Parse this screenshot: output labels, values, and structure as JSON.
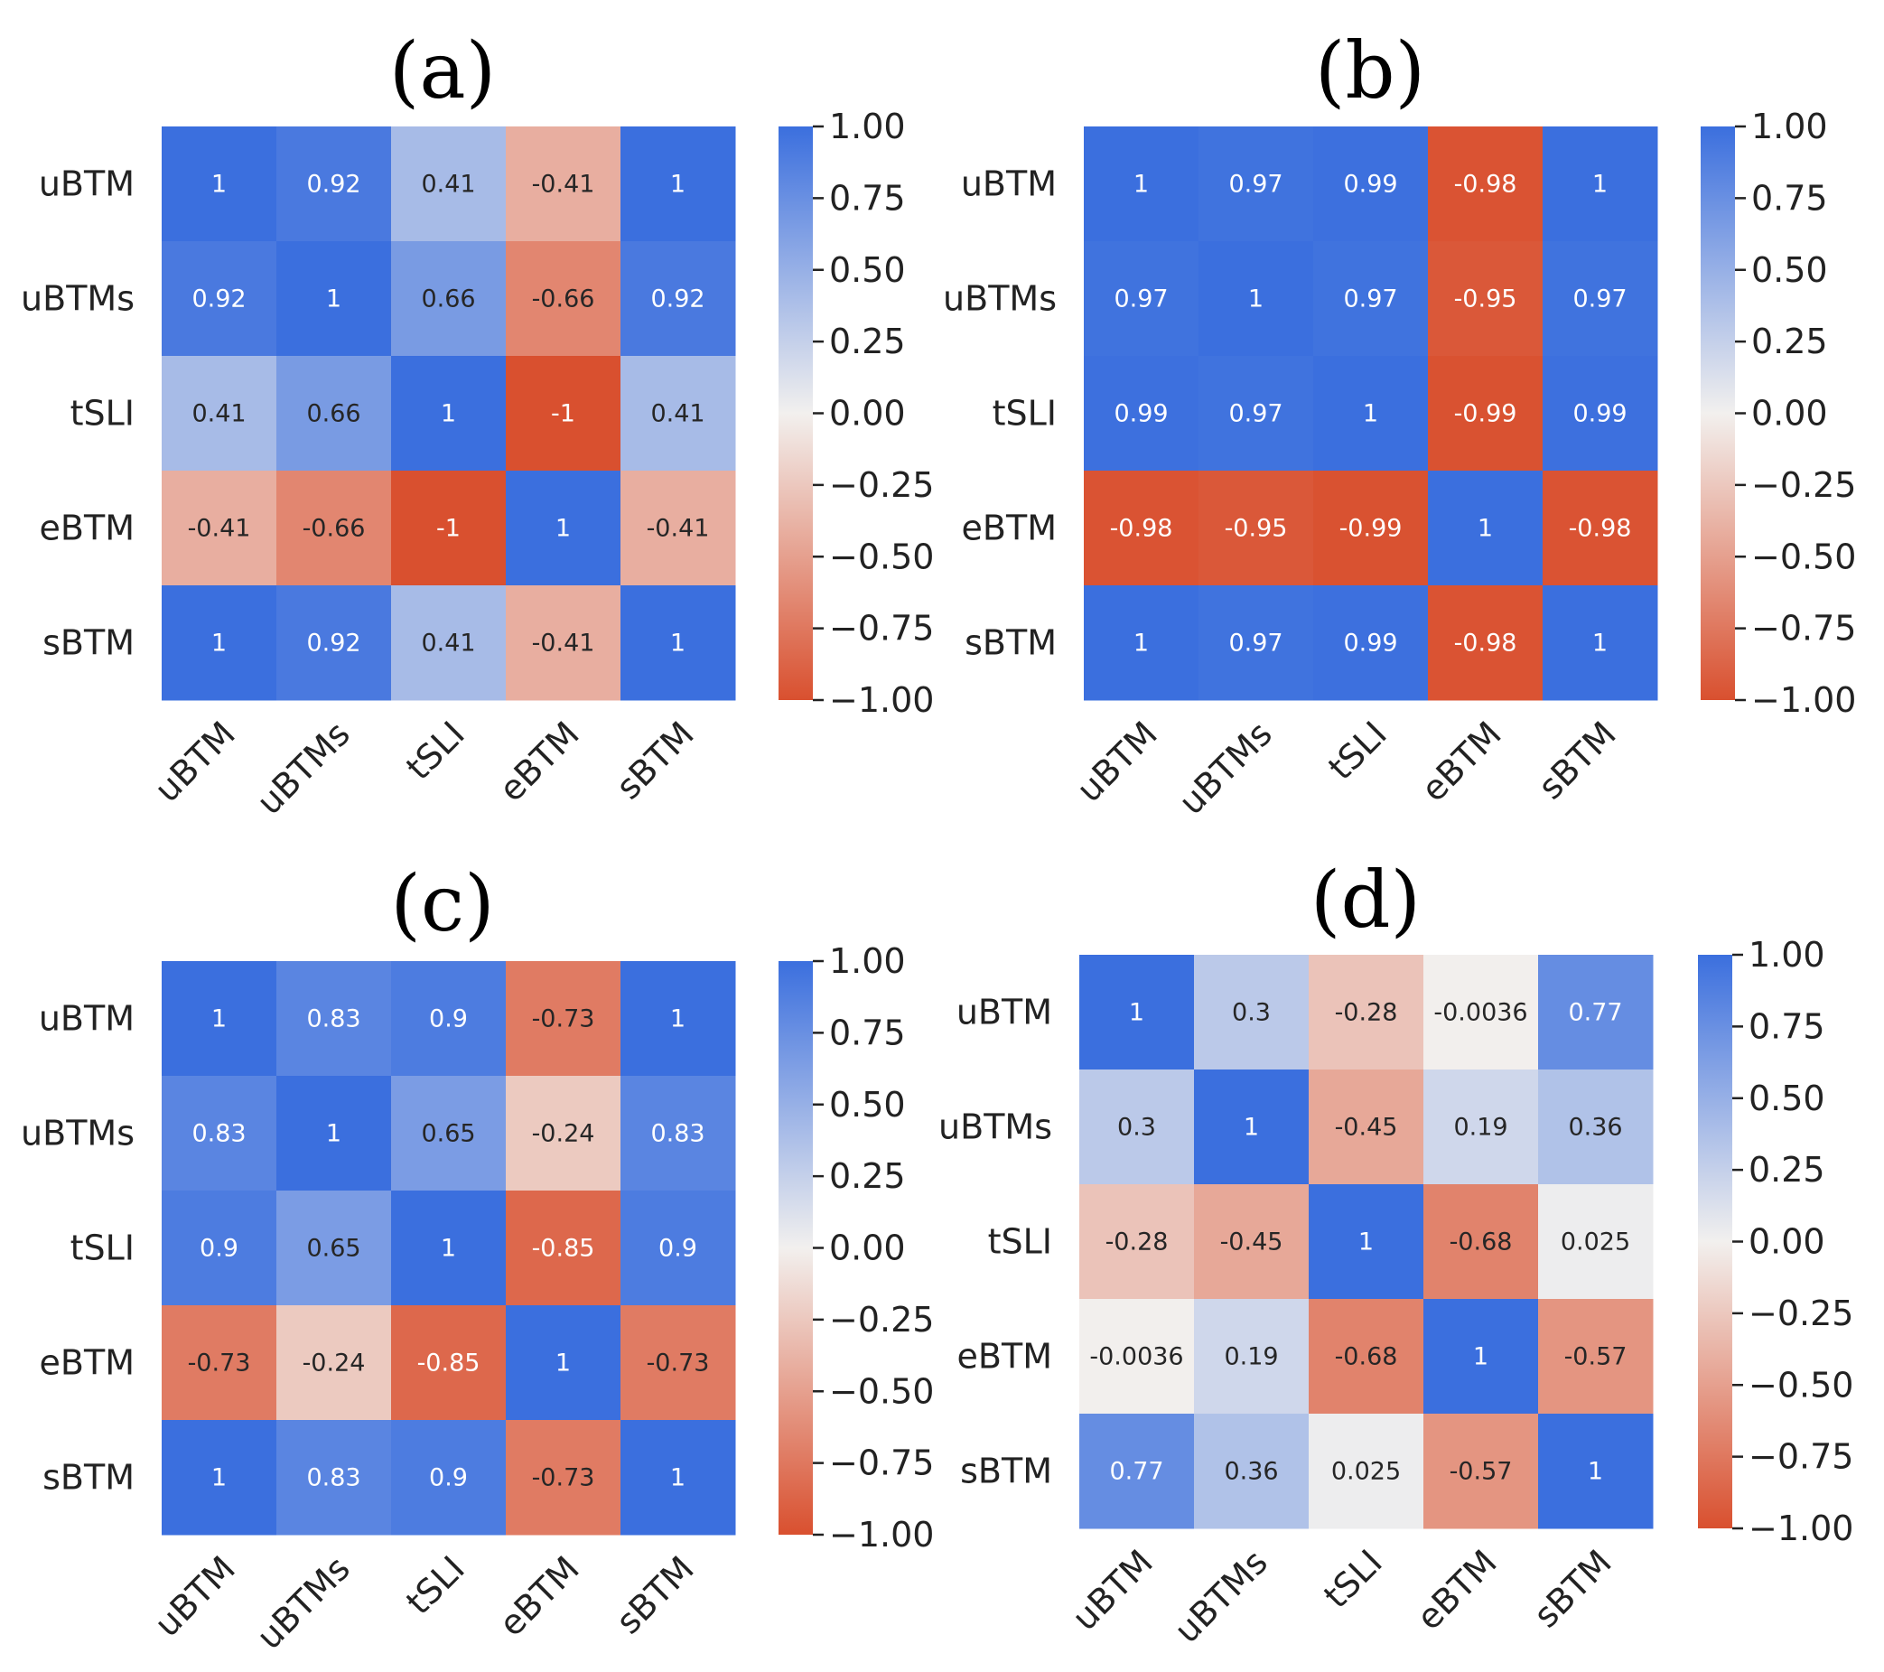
{
  "colors": {
    "negative": "#d9502f",
    "zero": "#f2f0ee",
    "positive": "#3b6fde"
  },
  "chart_data": [
    {
      "type": "heatmap",
      "title": "(a)",
      "rows": [
        "uBTM",
        "uBTMs",
        "tSLI",
        "eBTM",
        "sBTM"
      ],
      "cols": [
        "uBTM",
        "uBTMs",
        "tSLI",
        "eBTM",
        "sBTM"
      ],
      "values": [
        [
          1,
          0.92,
          0.41,
          -0.41,
          1
        ],
        [
          0.92,
          1,
          0.66,
          -0.66,
          0.92
        ],
        [
          0.41,
          0.66,
          1,
          -1,
          0.41
        ],
        [
          -0.41,
          -0.66,
          -1,
          1,
          -0.41
        ],
        [
          1,
          0.92,
          0.41,
          -0.41,
          1
        ]
      ],
      "labels": [
        [
          "1",
          "0.92",
          "0.41",
          "-0.41",
          "1"
        ],
        [
          "0.92",
          "1",
          "0.66",
          "-0.66",
          "0.92"
        ],
        [
          "0.41",
          "0.66",
          "1",
          "-1",
          "0.41"
        ],
        [
          "-0.41",
          "-0.66",
          "-1",
          "1",
          "-0.41"
        ],
        [
          "1",
          "0.92",
          "0.41",
          "-0.41",
          "1"
        ]
      ],
      "vmin": -1,
      "vmax": 1,
      "colorbar_ticks": [
        "1.00",
        "0.75",
        "0.50",
        "0.25",
        "0.00",
        "−0.25",
        "−0.50",
        "−0.75",
        "−1.00"
      ]
    },
    {
      "type": "heatmap",
      "title": "(b)",
      "rows": [
        "uBTM",
        "uBTMs",
        "tSLI",
        "eBTM",
        "sBTM"
      ],
      "cols": [
        "uBTM",
        "uBTMs",
        "tSLI",
        "eBTM",
        "sBTM"
      ],
      "values": [
        [
          1,
          0.97,
          0.99,
          -0.98,
          1
        ],
        [
          0.97,
          1,
          0.97,
          -0.95,
          0.97
        ],
        [
          0.99,
          0.97,
          1,
          -0.99,
          0.99
        ],
        [
          -0.98,
          -0.95,
          -0.99,
          1,
          -0.98
        ],
        [
          1,
          0.97,
          0.99,
          -0.98,
          1
        ]
      ],
      "labels": [
        [
          "1",
          "0.97",
          "0.99",
          "-0.98",
          "1"
        ],
        [
          "0.97",
          "1",
          "0.97",
          "-0.95",
          "0.97"
        ],
        [
          "0.99",
          "0.97",
          "1",
          "-0.99",
          "0.99"
        ],
        [
          "-0.98",
          "-0.95",
          "-0.99",
          "1",
          "-0.98"
        ],
        [
          "1",
          "0.97",
          "0.99",
          "-0.98",
          "1"
        ]
      ],
      "vmin": -1,
      "vmax": 1,
      "colorbar_ticks": [
        "1.00",
        "0.75",
        "0.50",
        "0.25",
        "0.00",
        "−0.25",
        "−0.50",
        "−0.75",
        "−1.00"
      ]
    },
    {
      "type": "heatmap",
      "title": "(c)",
      "rows": [
        "uBTM",
        "uBTMs",
        "tSLI",
        "eBTM",
        "sBTM"
      ],
      "cols": [
        "uBTM",
        "uBTMs",
        "tSLI",
        "eBTM",
        "sBTM"
      ],
      "values": [
        [
          1,
          0.83,
          0.9,
          -0.73,
          1
        ],
        [
          0.83,
          1,
          0.65,
          -0.24,
          0.83
        ],
        [
          0.9,
          0.65,
          1,
          -0.85,
          0.9
        ],
        [
          -0.73,
          -0.24,
          -0.85,
          1,
          -0.73
        ],
        [
          1,
          0.83,
          0.9,
          -0.73,
          1
        ]
      ],
      "labels": [
        [
          "1",
          "0.83",
          "0.9",
          "-0.73",
          "1"
        ],
        [
          "0.83",
          "1",
          "0.65",
          "-0.24",
          "0.83"
        ],
        [
          "0.9",
          "0.65",
          "1",
          "-0.85",
          "0.9"
        ],
        [
          "-0.73",
          "-0.24",
          "-0.85",
          "1",
          "-0.73"
        ],
        [
          "1",
          "0.83",
          "0.9",
          "-0.73",
          "1"
        ]
      ],
      "vmin": -1,
      "vmax": 1,
      "colorbar_ticks": [
        "1.00",
        "0.75",
        "0.50",
        "0.25",
        "0.00",
        "−0.25",
        "−0.50",
        "−0.75",
        "−1.00"
      ]
    },
    {
      "type": "heatmap",
      "title": "(d)",
      "rows": [
        "uBTM",
        "uBTMs",
        "tSLI",
        "eBTM",
        "sBTM"
      ],
      "cols": [
        "uBTM",
        "uBTMs",
        "tSLI",
        "eBTM",
        "sBTM"
      ],
      "values": [
        [
          1,
          0.3,
          -0.28,
          -0.0036,
          0.77
        ],
        [
          0.3,
          1,
          -0.45,
          0.19,
          0.36
        ],
        [
          -0.28,
          -0.45,
          1,
          -0.68,
          0.025
        ],
        [
          -0.0036,
          0.19,
          -0.68,
          1,
          -0.57
        ],
        [
          0.77,
          0.36,
          0.025,
          -0.57,
          1
        ]
      ],
      "labels": [
        [
          "1",
          "0.3",
          "-0.28",
          "-0.0036",
          "0.77"
        ],
        [
          "0.3",
          "1",
          "-0.45",
          "0.19",
          "0.36"
        ],
        [
          "-0.28",
          "-0.45",
          "1",
          "-0.68",
          "0.025"
        ],
        [
          "-0.0036",
          "0.19",
          "-0.68",
          "1",
          "-0.57"
        ],
        [
          "0.77",
          "0.36",
          "0.025",
          "-0.57",
          "1"
        ]
      ],
      "vmin": -1,
      "vmax": 1,
      "colorbar_ticks": [
        "1.00",
        "0.75",
        "0.50",
        "0.25",
        "0.00",
        "−0.25",
        "−0.50",
        "−0.75",
        "−1.00"
      ]
    }
  ]
}
